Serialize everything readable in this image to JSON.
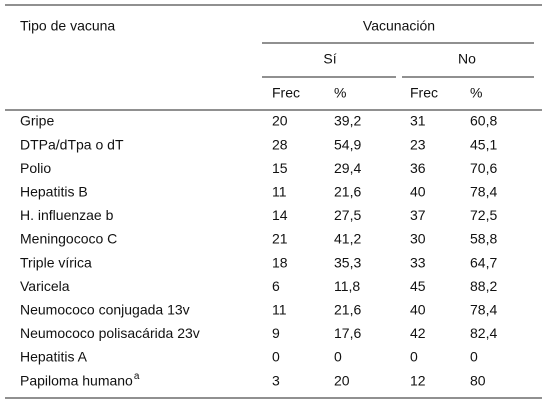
{
  "table": {
    "header": {
      "first": "Tipo de vacuna",
      "group": "Vacunación",
      "subgroups": [
        "Sí",
        "No"
      ],
      "columns": [
        "Frec",
        "%",
        "Frec",
        "%"
      ]
    },
    "rows": [
      [
        "Gripe",
        "20",
        "39,2",
        "31",
        "60,8"
      ],
      [
        "DTPa/dTpa o dT",
        "28",
        "54,9",
        "23",
        "45,1"
      ],
      [
        "Polio",
        "15",
        "29,4",
        "36",
        "70,6"
      ],
      [
        "Hepatitis B",
        "11",
        "21,6",
        "40",
        "78,4"
      ],
      [
        "H. influenzae b",
        "14",
        "27,5",
        "37",
        "72,5"
      ],
      [
        "Meningococo C",
        "21",
        "41,2",
        "30",
        "58,8"
      ],
      [
        "Triple vírica",
        "18",
        "35,3",
        "33",
        "64,7"
      ],
      [
        "Varicela",
        "6",
        "11,8",
        "45",
        "88,2"
      ],
      [
        "Neumococo conjugada 13v",
        "11",
        "21,6",
        "40",
        "78,4"
      ],
      [
        "Neumococo polisacárida 23v",
        "9",
        "17,6",
        "42",
        "82,4"
      ],
      [
        "Hepatitis A",
        "0",
        "0",
        "0",
        "0"
      ],
      [
        "Papiloma humano",
        "3",
        "20",
        "12",
        "80"
      ]
    ],
    "footnote_marks": {
      "11": "a"
    }
  }
}
